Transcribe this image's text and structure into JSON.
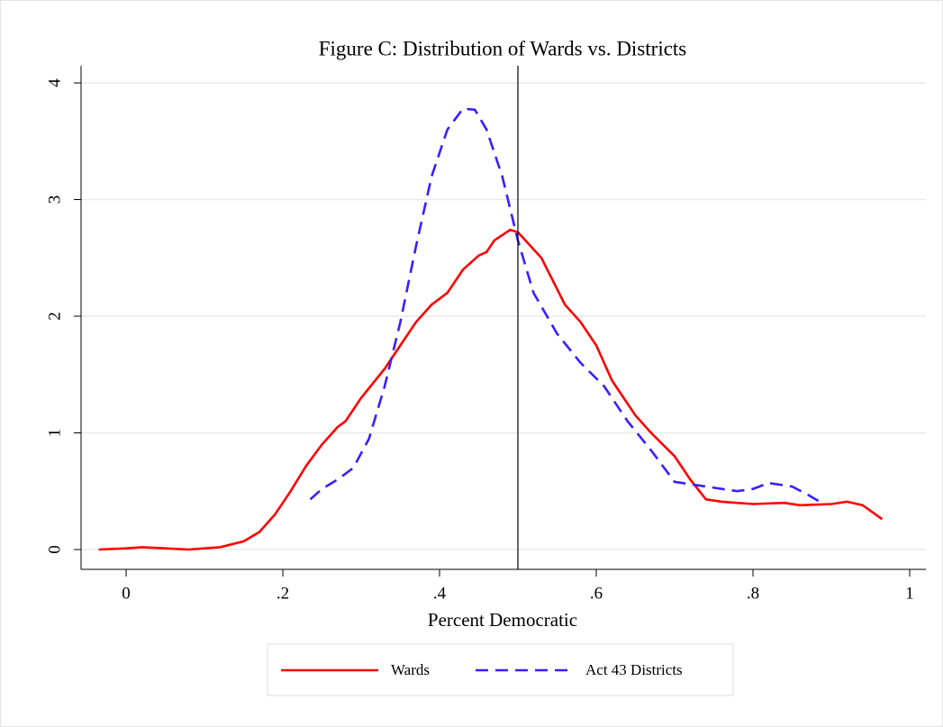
{
  "chart_data": {
    "type": "line",
    "title": "Figure C: Distribution of Wards vs. Districts",
    "xlabel": "Percent Democratic",
    "xlim": [
      -0.0575,
      1.0207
    ],
    "ylim": [
      -0.17,
      4.147
    ],
    "xticks": [
      0,
      {
        "value": 0.2,
        "label": ".2"
      },
      {
        "value": 0.4,
        "label": ".4"
      },
      {
        "value": 0.6,
        "label": ".6"
      },
      {
        "value": 0.8,
        "label": ".8"
      },
      1
    ],
    "yticks": [
      0,
      1,
      2,
      3,
      4
    ],
    "grid": true,
    "xline": 0.5,
    "legend": "bottom",
    "series": [
      {
        "name": "Wards",
        "color": "#ff0000",
        "dash": false,
        "x": [
          -0.035,
          0,
          0.02,
          0.05,
          0.08,
          0.1,
          0.12,
          0.15,
          0.17,
          0.19,
          0.21,
          0.23,
          0.25,
          0.27,
          0.28,
          0.3,
          0.33,
          0.35,
          0.37,
          0.39,
          0.41,
          0.43,
          0.45,
          0.46,
          0.47,
          0.49,
          0.5,
          0.53,
          0.56,
          0.58,
          0.6,
          0.62,
          0.65,
          0.67,
          0.7,
          0.72,
          0.74,
          0.76,
          0.8,
          0.84,
          0.86,
          0.9,
          0.92,
          0.94,
          0.965
        ],
        "values": [
          0,
          0.01,
          0.02,
          0.01,
          0,
          0.01,
          0.02,
          0.07,
          0.15,
          0.3,
          0.5,
          0.72,
          0.9,
          1.05,
          1.1,
          1.3,
          1.55,
          1.75,
          1.95,
          2.1,
          2.2,
          2.4,
          2.52,
          2.55,
          2.65,
          2.74,
          2.72,
          2.5,
          2.1,
          1.95,
          1.75,
          1.45,
          1.15,
          1.0,
          0.8,
          0.6,
          0.43,
          0.41,
          0.39,
          0.4,
          0.38,
          0.39,
          0.41,
          0.38,
          0.26
        ]
      },
      {
        "name": "Act 43 Districts",
        "color": "#3b1eff",
        "dash": true,
        "x": [
          0.235,
          0.25,
          0.27,
          0.29,
          0.31,
          0.33,
          0.35,
          0.37,
          0.39,
          0.41,
          0.43,
          0.445,
          0.46,
          0.48,
          0.5,
          0.52,
          0.55,
          0.58,
          0.61,
          0.64,
          0.67,
          0.7,
          0.72,
          0.75,
          0.78,
          0.8,
          0.82,
          0.85,
          0.87,
          0.89
        ],
        "values": [
          0.43,
          0.52,
          0.6,
          0.7,
          0.95,
          1.4,
          1.95,
          2.6,
          3.2,
          3.6,
          3.78,
          3.77,
          3.6,
          3.2,
          2.65,
          2.2,
          1.85,
          1.6,
          1.4,
          1.1,
          0.85,
          0.58,
          0.56,
          0.53,
          0.5,
          0.52,
          0.57,
          0.54,
          0.47,
          0.39
        ]
      }
    ]
  }
}
